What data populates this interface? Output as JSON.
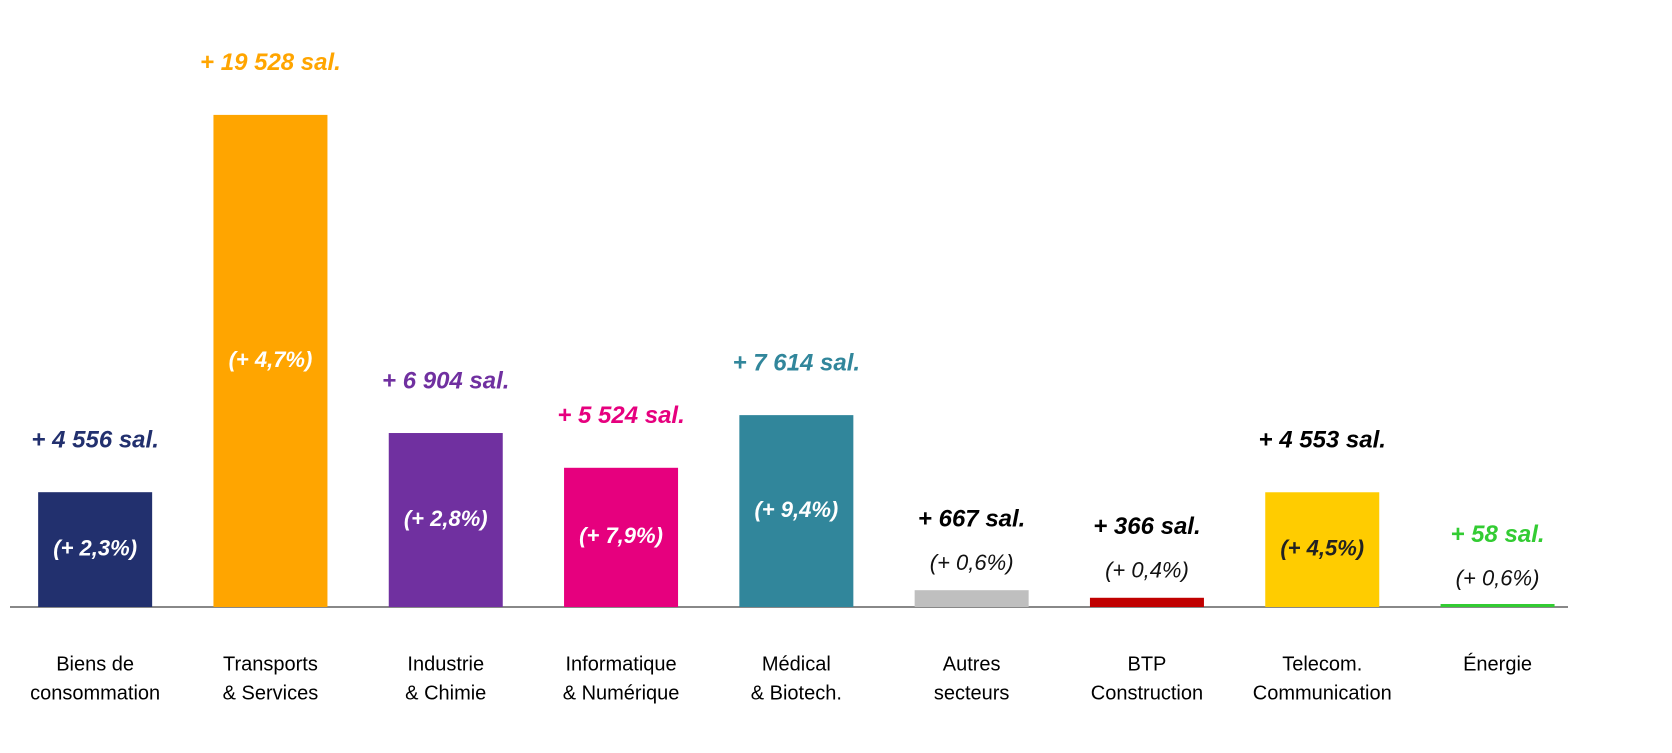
{
  "chart_data": {
    "type": "bar",
    "categories": [
      [
        "Biens de",
        "consommation"
      ],
      [
        "Transports",
        "& Services"
      ],
      [
        "Industrie",
        "& Chimie"
      ],
      [
        "Informatique",
        "& Numérique"
      ],
      [
        "Médical",
        "& Biotech."
      ],
      [
        "Autres",
        "secteurs"
      ],
      [
        "BTP",
        "Construction"
      ],
      [
        "Telecom.",
        "Communication"
      ],
      [
        "Énergie"
      ]
    ],
    "values": [
      4556,
      19528,
      6904,
      5524,
      7614,
      667,
      366,
      4553,
      58
    ],
    "value_labels": [
      "+ 4 556 sal.",
      "+ 19 528 sal.",
      "+ 6 904 sal.",
      "+ 5 524 sal.",
      "+ 7 614 sal.",
      "+ 667 sal.",
      "+ 366 sal.",
      "+ 4 553 sal.",
      "+ 58 sal."
    ],
    "pct_values": [
      2.3,
      4.7,
      2.8,
      7.9,
      9.4,
      0.6,
      0.4,
      4.5,
      0.6
    ],
    "pct_labels": [
      "(+ 2,3%)",
      "(+ 4,7%)",
      "(+ 2,8%)",
      "(+ 7,9%)",
      "(+ 9,4%)",
      "(+ 0,6%)",
      "(+ 0,4%)",
      "(+ 4,5%)",
      "(+ 0,6%)"
    ],
    "colors": [
      "#22306e",
      "#ffa500",
      "#7030a0",
      "#e6007e",
      "#31869b",
      "#bfbfbf",
      "#c00000",
      "#ffcc00",
      "#33cc33"
    ],
    "label_colors": [
      "#22306e",
      "#ffa500",
      "#7030a0",
      "#e6007e",
      "#31869b",
      "#000000",
      "#000000",
      "#000000",
      "#33cc33"
    ],
    "ylim": [
      0,
      20000
    ]
  }
}
